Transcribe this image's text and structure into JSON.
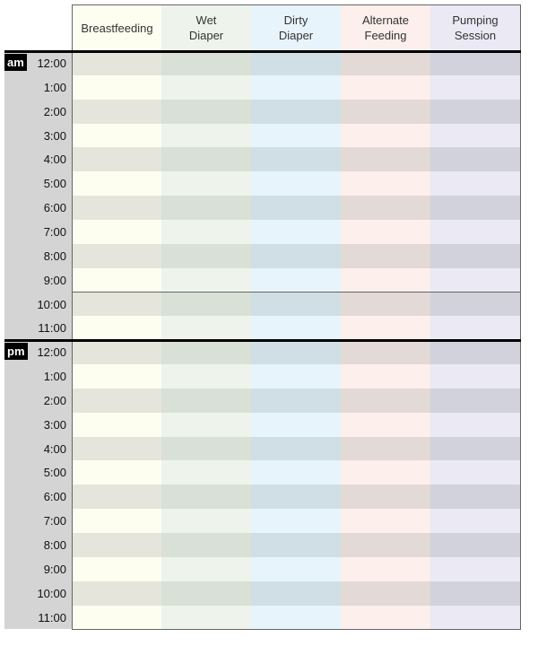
{
  "header": {
    "columns": [
      [
        "Breastfeeding"
      ],
      [
        "Wet",
        "Diaper"
      ],
      [
        "Dirty",
        "Diaper"
      ],
      [
        "Alternate",
        "Feeding"
      ],
      [
        "Pumping",
        "Session"
      ]
    ]
  },
  "sections": [
    {
      "label": "am",
      "times": [
        "12:00",
        "1:00",
        "2:00",
        "3:00",
        "4:00",
        "5:00",
        "6:00",
        "7:00",
        "8:00",
        "9:00",
        "10:00",
        "11:00"
      ]
    },
    {
      "label": "pm",
      "times": [
        "12:00",
        "1:00",
        "2:00",
        "3:00",
        "4:00",
        "5:00",
        "6:00",
        "7:00",
        "8:00",
        "9:00",
        "10:00",
        "11:00"
      ]
    }
  ]
}
